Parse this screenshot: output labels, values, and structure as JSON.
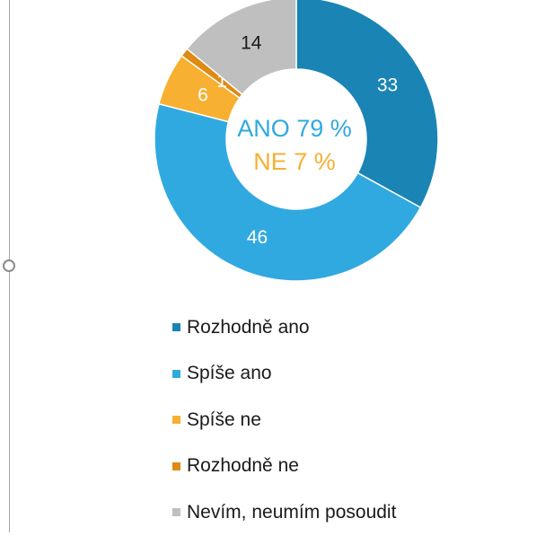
{
  "chart_data": {
    "type": "pie",
    "style": "donut",
    "categories": [
      "Rozhodně ano",
      "Spíše ano",
      "Spíše ne",
      "Rozhodně ne",
      "Nevím, neumím posoudit"
    ],
    "values": [
      33,
      46,
      6,
      1,
      14
    ],
    "colors": [
      "#1a84b4",
      "#30a9e1",
      "#f7b031",
      "#de8a14",
      "#bfbfbf"
    ],
    "label_colors": [
      "#ffffff",
      "#ffffff",
      "#ffffff",
      "#ffffff",
      "#1a1a1a"
    ],
    "center_text": [
      {
        "text": "ANO 79 %",
        "color": "#30a9e1"
      },
      {
        "text": "NE 7 %",
        "color": "#f7b031"
      }
    ],
    "legend_position": "bottom"
  }
}
